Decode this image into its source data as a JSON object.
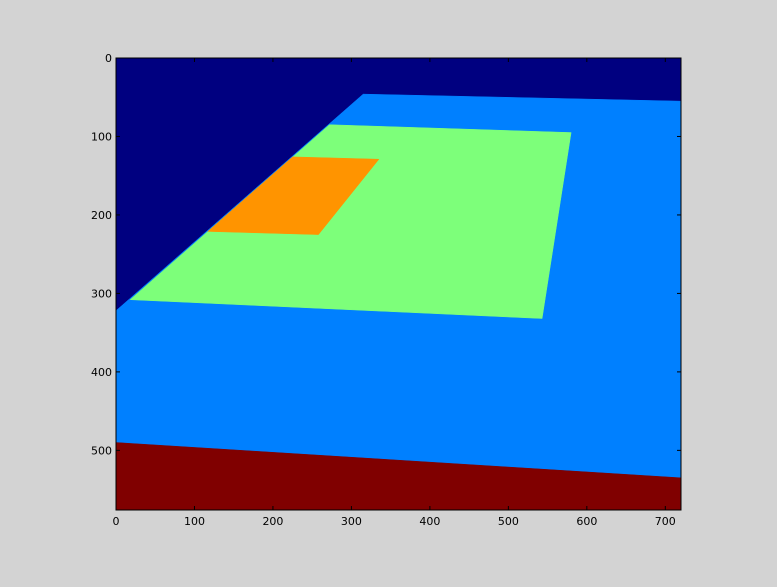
{
  "chart_data": {
    "type": "heatmap",
    "title": "",
    "xlabel": "",
    "ylabel": "",
    "xlim": [
      0,
      720
    ],
    "ylim": [
      576,
      0
    ],
    "y_axis_inverted": true,
    "grid": false,
    "colormap": "jet",
    "xticks": [
      0,
      100,
      200,
      300,
      400,
      500,
      600,
      700
    ],
    "yticks": [
      0,
      100,
      200,
      300,
      400,
      500
    ],
    "background": "#d3d3d3",
    "regions": [
      {
        "id": "dark-blue",
        "color": "#000080",
        "polygon": [
          [
            0,
            0
          ],
          [
            720,
            0
          ],
          [
            720,
            576
          ],
          [
            0,
            576
          ]
        ]
      },
      {
        "id": "light-blue",
        "color": "#0080ff",
        "polygon": [
          [
            315,
            46
          ],
          [
            720,
            55
          ],
          [
            720,
            535
          ],
          [
            0,
            490
          ],
          [
            0,
            322
          ]
        ]
      },
      {
        "id": "green",
        "color": "#7dff7a",
        "polygon": [
          [
            272,
            85
          ],
          [
            580,
            95
          ],
          [
            543,
            332
          ],
          [
            18,
            308
          ]
        ]
      },
      {
        "id": "orange",
        "color": "#ff9400",
        "polygon": [
          [
            225,
            126
          ],
          [
            335,
            129
          ],
          [
            258,
            225
          ],
          [
            117,
            221
          ]
        ]
      },
      {
        "id": "dark-red",
        "color": "#800000",
        "polygon": [
          [
            0,
            490
          ],
          [
            720,
            535
          ],
          [
            720,
            576
          ],
          [
            0,
            576
          ]
        ]
      }
    ]
  }
}
